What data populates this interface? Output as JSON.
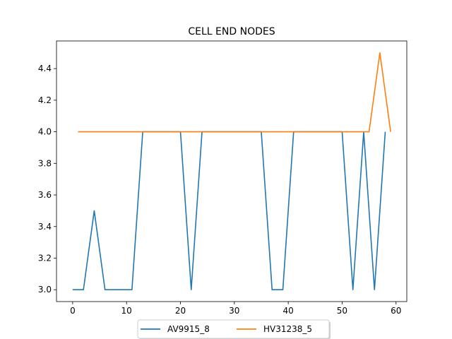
{
  "chart_data": {
    "type": "line",
    "title": "CELL END NODES",
    "xlabel": "",
    "ylabel": "",
    "xlim": [
      -3,
      62
    ],
    "ylim": [
      2.925,
      4.575
    ],
    "xticks": [
      0,
      10,
      20,
      30,
      40,
      50,
      60
    ],
    "yticks": [
      3.0,
      3.2,
      3.4,
      3.6,
      3.8,
      4.0,
      4.2,
      4.4
    ],
    "ytick_labels": [
      "3.0",
      "3.2",
      "3.4",
      "3.6",
      "3.8",
      "4.0",
      "4.2",
      "4.4"
    ],
    "grid": false,
    "legend_position": "bottom-center",
    "series": [
      {
        "name": "AV9915_8",
        "color": "#1f77b4",
        "x": [
          0,
          2,
          4,
          6,
          11,
          13,
          20,
          22,
          24,
          35,
          37,
          39,
          41,
          50,
          52,
          54,
          56,
          58
        ],
        "y": [
          3.0,
          3.0,
          3.5,
          3.0,
          3.0,
          4.0,
          4.0,
          3.0,
          4.0,
          4.0,
          3.0,
          3.0,
          4.0,
          4.0,
          3.0,
          4.0,
          3.0,
          4.0
        ]
      },
      {
        "name": "HV31238_5",
        "color": "#ff7f0e",
        "x": [
          1,
          55,
          57,
          59
        ],
        "y": [
          4.0,
          4.0,
          4.5,
          4.0
        ]
      }
    ]
  }
}
